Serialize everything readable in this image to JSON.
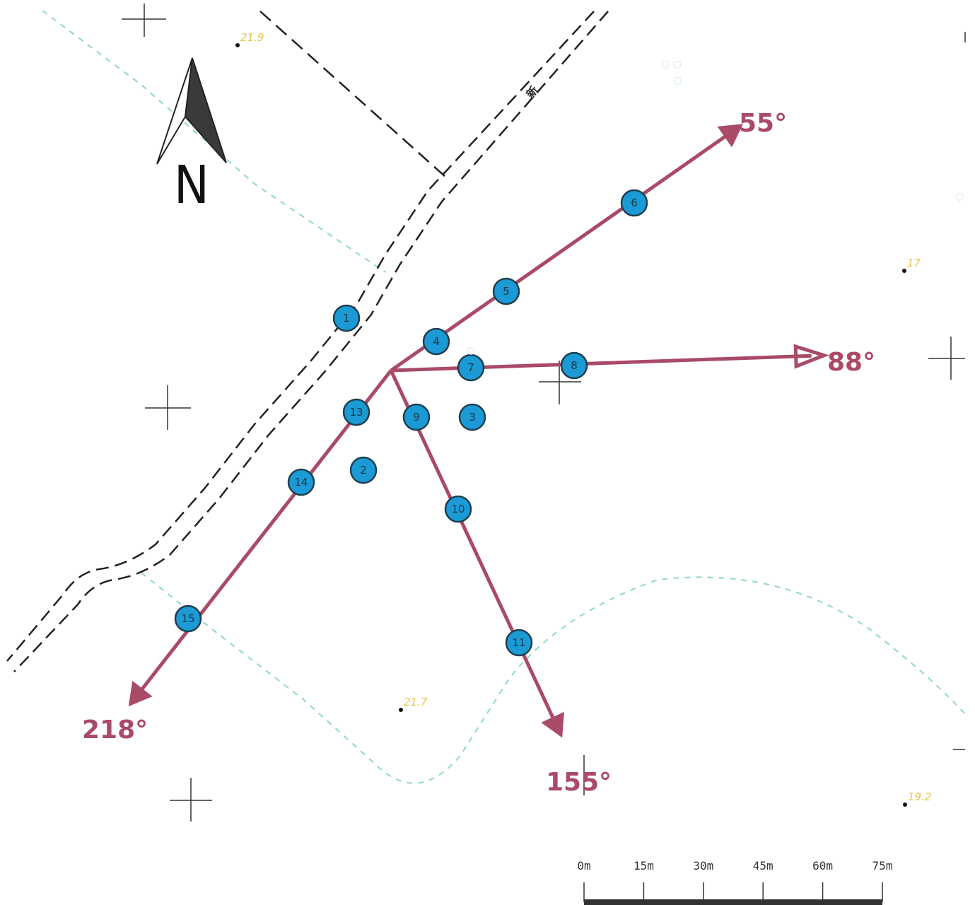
{
  "north_arrow": {
    "letter": "N"
  },
  "road_label": "新",
  "bearings": [
    {
      "deg": 55,
      "label": "55°"
    },
    {
      "deg": 88,
      "label": "88°"
    },
    {
      "deg": 155,
      "label": "155°"
    },
    {
      "deg": 218,
      "label": "218°"
    }
  ],
  "points": [
    {
      "id": "1",
      "label": "1"
    },
    {
      "id": "2",
      "label": "2"
    },
    {
      "id": "3",
      "label": "3"
    },
    {
      "id": "4",
      "label": "4"
    },
    {
      "id": "5",
      "label": "5"
    },
    {
      "id": "6",
      "label": "6"
    },
    {
      "id": "7",
      "label": "7"
    },
    {
      "id": "8",
      "label": "8"
    },
    {
      "id": "9",
      "label": "9"
    },
    {
      "id": "10",
      "label": "10"
    },
    {
      "id": "11",
      "label": "11"
    },
    {
      "id": "13",
      "label": "13"
    },
    {
      "id": "14",
      "label": "14"
    },
    {
      "id": "15",
      "label": "15"
    }
  ],
  "elevations": [
    {
      "id": "a",
      "label": "21.9"
    },
    {
      "id": "b",
      "label": "17"
    },
    {
      "id": "c",
      "label": "21.7"
    },
    {
      "id": "d",
      "label": "19.2"
    }
  ],
  "scale_bar": {
    "labels": [
      "0m",
      "15m",
      "30m",
      "45m",
      "60m",
      "75m"
    ]
  },
  "colors": {
    "bearing": "#a94a66",
    "point_fill": "#1b9ad6",
    "point_stroke": "#1f3f4f",
    "contour": "#8fd6c8",
    "elevation_text": "#e8c64a",
    "road": "#222222"
  }
}
